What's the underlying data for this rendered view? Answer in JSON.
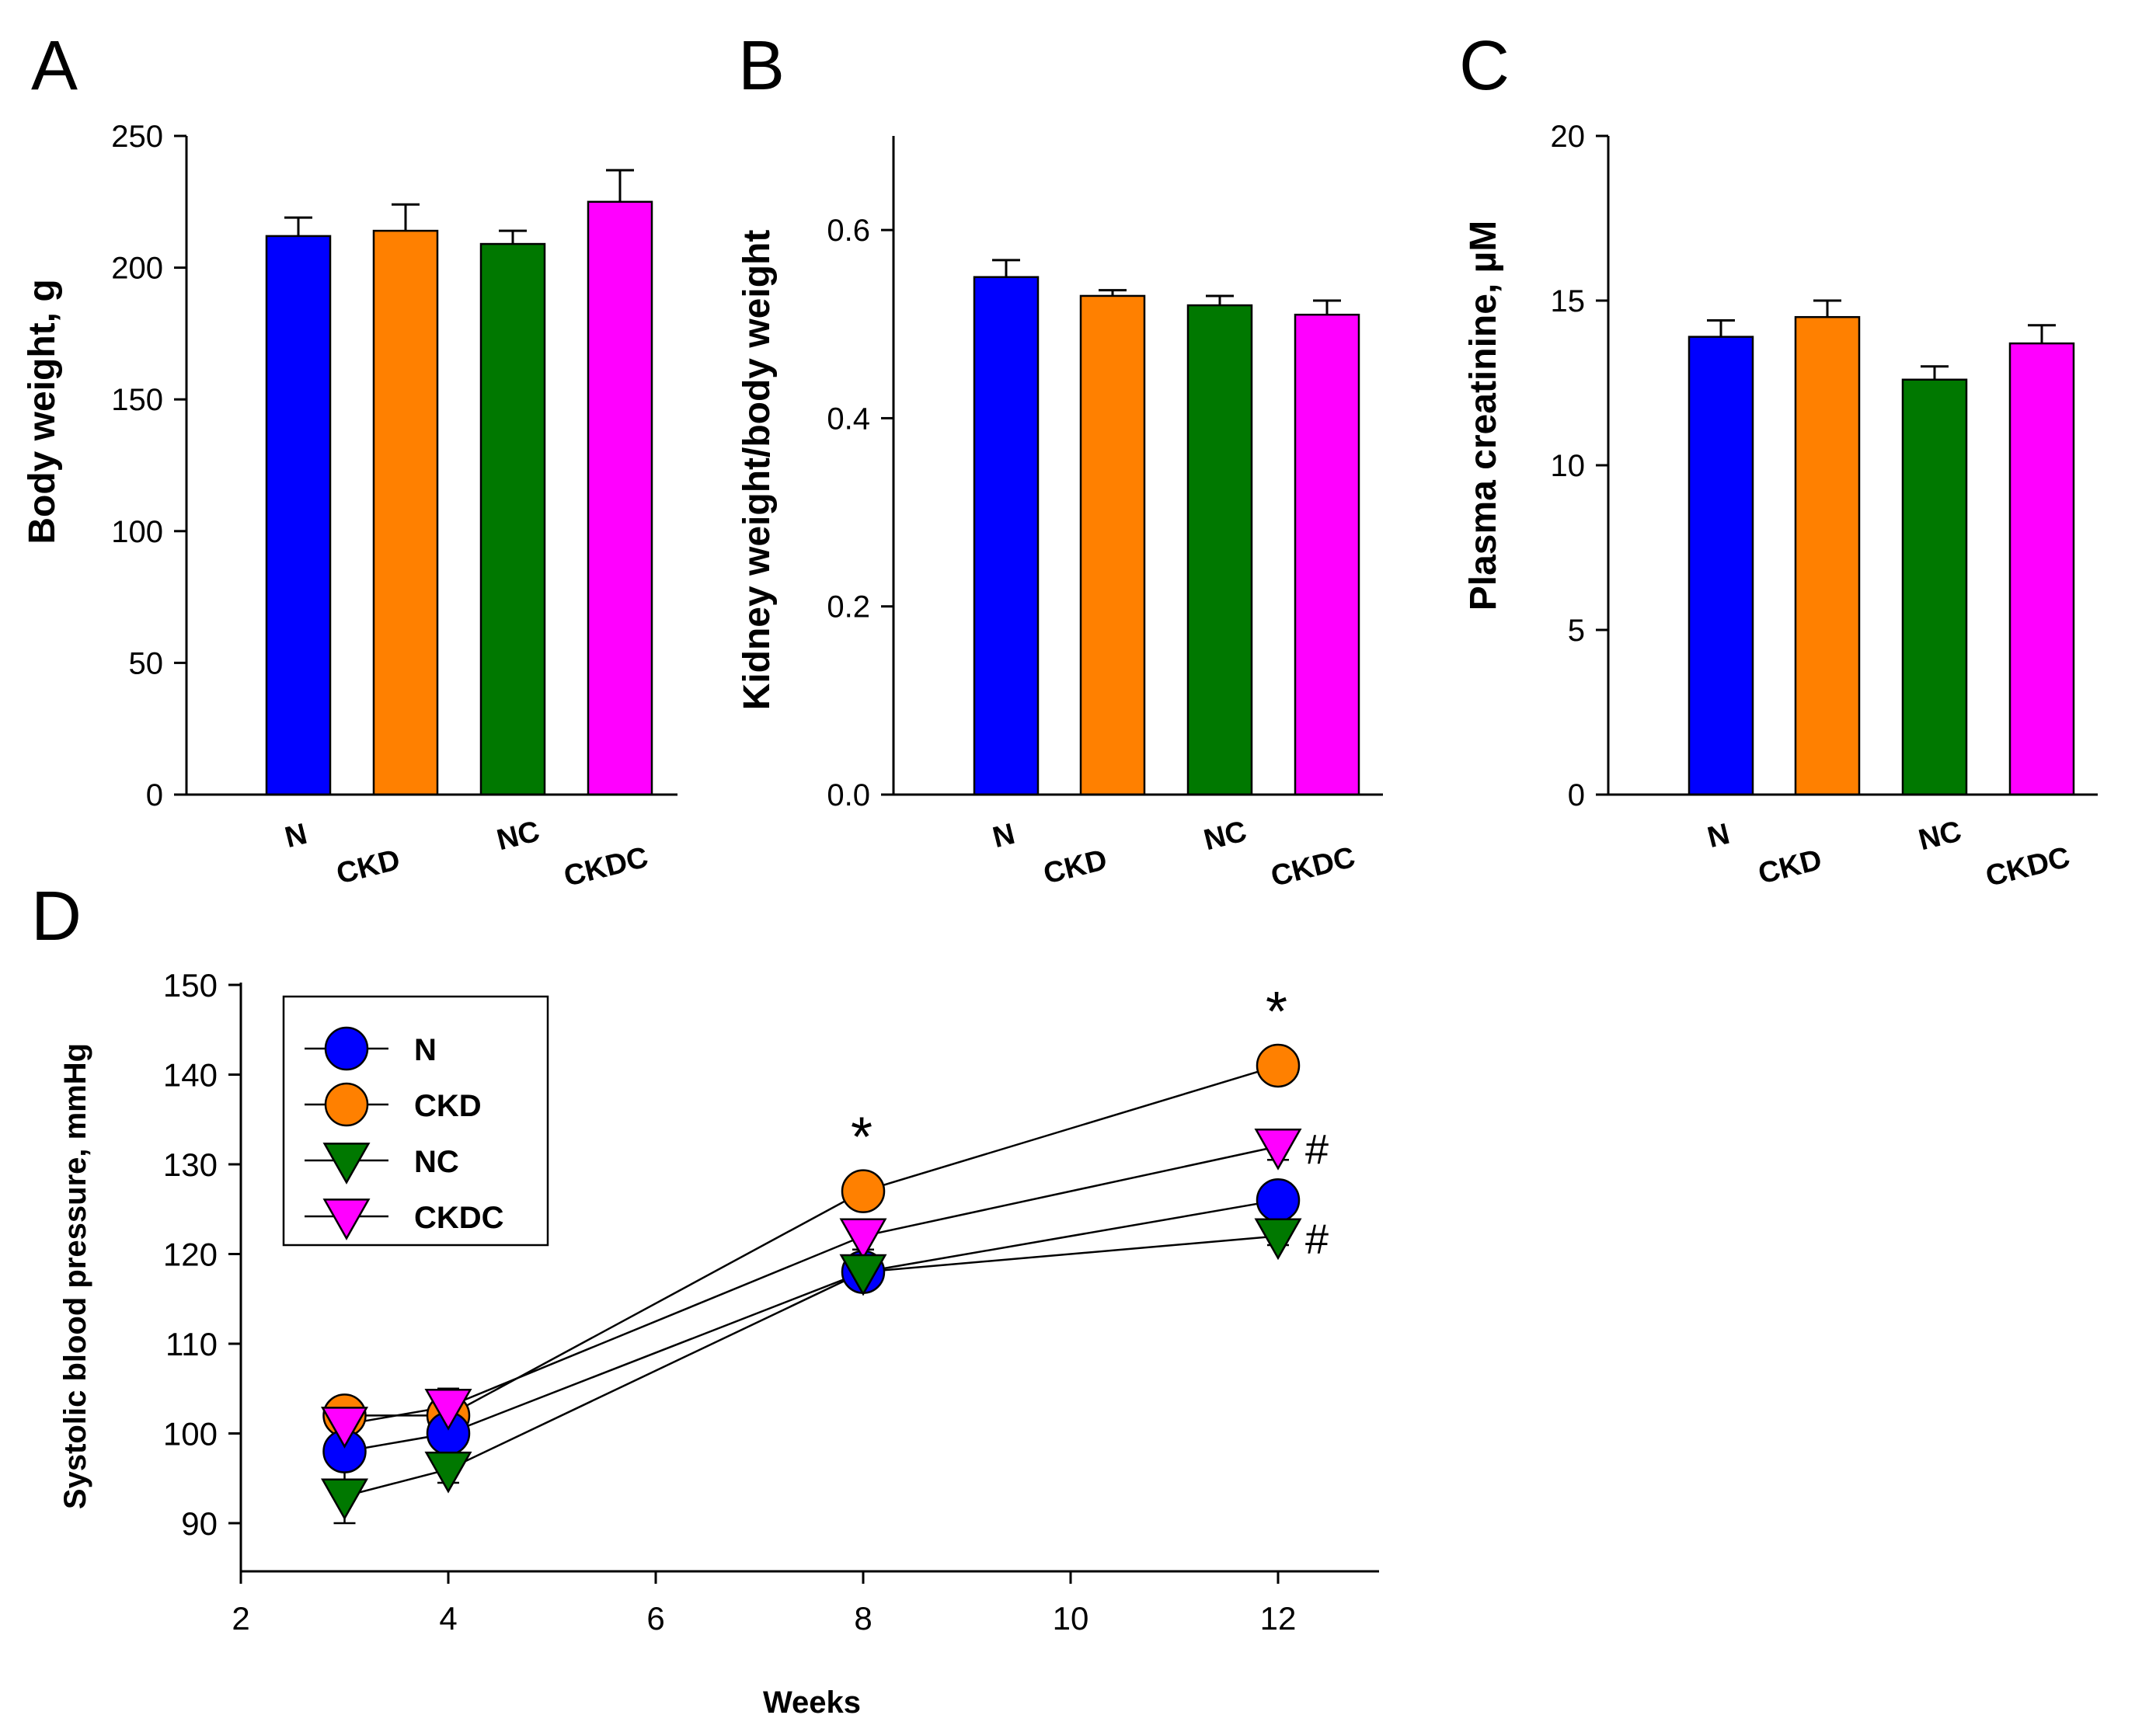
{
  "panels": [
    {
      "label": "A"
    },
    {
      "label": "B"
    },
    {
      "label": "C"
    },
    {
      "label": "D"
    }
  ],
  "colors": {
    "N": "#0000ff",
    "CKD": "#ff8000",
    "NC": "#007800",
    "CKDC": "#ff00ff",
    "axis": "#000000"
  },
  "chart_data": [
    {
      "panel": "A",
      "type": "bar",
      "categories": [
        "N",
        "CKD",
        "NC",
        "CKDC"
      ],
      "values": [
        212,
        214,
        209,
        225
      ],
      "errors": [
        7,
        10,
        5,
        12
      ],
      "ylabel": "Body weight, g",
      "ylim": [
        0,
        250
      ],
      "yticks": [
        0,
        50,
        100,
        150,
        200,
        250
      ],
      "ytick_labels": [
        "0",
        "50",
        "100",
        "150",
        "200",
        "250"
      ]
    },
    {
      "panel": "B",
      "type": "bar",
      "categories": [
        "N",
        "CKD",
        "NC",
        "CKDC"
      ],
      "values": [
        0.55,
        0.53,
        0.52,
        0.51
      ],
      "errors": [
        0.018,
        0.006,
        0.01,
        0.015
      ],
      "ylabel": "Kidney weight/body weight",
      "ylim": [
        0,
        0.7
      ],
      "yticks": [
        0,
        0.2,
        0.4,
        0.6
      ],
      "ytick_labels": [
        "0.0",
        "0.2",
        "0.4",
        "0.6"
      ]
    },
    {
      "panel": "C",
      "type": "bar",
      "categories": [
        "N",
        "CKD",
        "NC",
        "CKDC"
      ],
      "values": [
        13.9,
        14.5,
        12.6,
        13.7
      ],
      "errors": [
        0.5,
        0.5,
        0.4,
        0.55
      ],
      "ylabel": "Plasma creatinine, µM",
      "ylim": [
        0,
        20
      ],
      "yticks": [
        0,
        5,
        10,
        15,
        20
      ],
      "ytick_labels": [
        "0",
        "5",
        "10",
        "15",
        "20"
      ]
    },
    {
      "panel": "D",
      "type": "line",
      "x": [
        3,
        4,
        8,
        12
      ],
      "series": [
        {
          "name": "N",
          "marker": "circle",
          "values": [
            98,
            100,
            118,
            126
          ],
          "errors": [
            2,
            1.5,
            1,
            1.5
          ]
        },
        {
          "name": "CKD",
          "marker": "circle",
          "values": [
            102,
            102,
            127,
            141
          ],
          "errors": [
            1.5,
            2,
            1.5,
            1.5
          ]
        },
        {
          "name": "NC",
          "marker": "triangle-down",
          "values": [
            93,
            96,
            118,
            122
          ],
          "errors": [
            3,
            1.5,
            1,
            1
          ]
        },
        {
          "name": "CKDC",
          "marker": "triangle-down",
          "values": [
            101,
            103,
            122,
            132
          ],
          "errors": [
            1.5,
            2,
            1.5,
            1.5
          ]
        }
      ],
      "xlabel": "Weeks",
      "ylabel": "Systolic blood pressure, mmHg",
      "xlim": [
        2,
        13
      ],
      "ylim": [
        85,
        150
      ],
      "xticks": [
        2,
        4,
        6,
        8,
        10,
        12
      ],
      "xtick_labels": [
        "2",
        "4",
        "6",
        "8",
        "10",
        "12"
      ],
      "yticks": [
        90,
        100,
        110,
        120,
        130,
        140,
        150
      ],
      "ytick_labels": [
        "90",
        "100",
        "110",
        "120",
        "130",
        "140",
        "150"
      ],
      "legend": "top-left",
      "annotations": [
        {
          "text": "*",
          "x": 8,
          "series": "CKD"
        },
        {
          "text": "*",
          "x": 12,
          "series": "CKD"
        },
        {
          "text": "#",
          "x": 12,
          "series": "CKDC"
        },
        {
          "text": "#",
          "x": 12,
          "series": "NC"
        }
      ]
    }
  ]
}
